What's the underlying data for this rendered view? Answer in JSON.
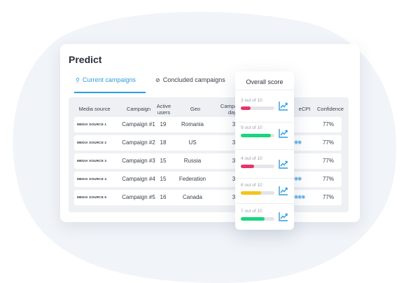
{
  "page_title": "Predict",
  "tabs": {
    "current": "Current campaigns",
    "concluded": "Concluded campaigns"
  },
  "table": {
    "headers": {
      "media_source": "Media source",
      "campaign": "Campaign",
      "active_users_1": "Active",
      "active_users_2": "users",
      "geo": "Geo",
      "campaign_day_1": "Campaign",
      "campaign_day_2": "day",
      "ecpi": "eCPI",
      "confidence": "Confidence"
    },
    "rows": [
      {
        "media": "MEDIA SOURCE 1",
        "campaign": "Campaign #1",
        "users": "19",
        "geo": "Romania",
        "day": "3",
        "dots": "",
        "confidence": "77%"
      },
      {
        "media": "MEDIA SOURCE 2",
        "campaign": "Campaign #2",
        "users": "18",
        "geo": "US",
        "day": "3",
        "dots": "◉◉",
        "confidence": "77%"
      },
      {
        "media": "MEDIA SOURCE 3",
        "campaign": "Campaign #3",
        "users": "15",
        "geo": "Russia",
        "day": "3",
        "dots": "",
        "confidence": "77%"
      },
      {
        "media": "MEDIA SOURCE 4",
        "campaign": "Campaign #4",
        "users": "15",
        "geo": "Federation",
        "day": "3",
        "dots": "◉◉",
        "confidence": "77%"
      },
      {
        "media": "MEDIA SOURCE 5",
        "campaign": "Campaign #5",
        "users": "16",
        "geo": "Canada",
        "day": "3",
        "dots": "◉◉◉",
        "confidence": "77%"
      }
    ]
  },
  "overall_score": {
    "title": "Overall score",
    "items": [
      {
        "label": "3 out of 10",
        "value": 3,
        "color": "#e8336b"
      },
      {
        "label": "9 out of 10",
        "value": 9,
        "color": "#17d67e"
      },
      {
        "label": "4 out of 10",
        "value": 4,
        "color": "#e8336b"
      },
      {
        "label": "6 out of 10",
        "value": 6,
        "color": "#f4c41a"
      },
      {
        "label": "7 out of 10",
        "value": 7,
        "color": "#17d67e"
      }
    ],
    "max": 10,
    "trend_icon": "trend-up-icon"
  },
  "colors": {
    "accent": "#2e9be0",
    "blob": "#f1f4f8"
  }
}
